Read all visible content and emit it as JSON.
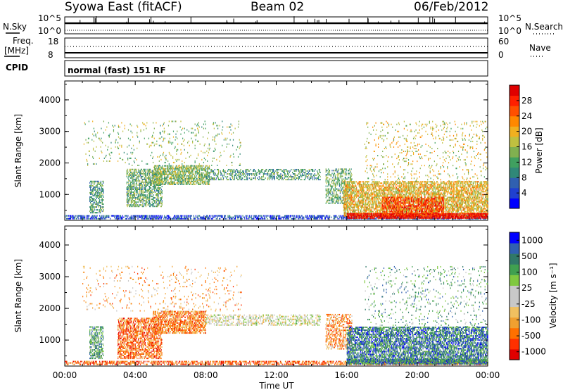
{
  "header": {
    "station": "Syowa East (fitACF)",
    "beam": "Beam 02",
    "date": "06/Feb/2012"
  },
  "status_panel": {
    "nsky_label": "N.Sky",
    "nsky_ticks": [
      "10^5",
      "10^0"
    ],
    "nsearch_label": "N.Search",
    "nsearch_ticks": [
      "10^5",
      "10^0"
    ],
    "freq_label": "Freq.",
    "freq_unit": "[MHz]",
    "freq_ticks": [
      "18",
      "8"
    ],
    "nave_label": "Nave",
    "nave_ticks": [
      "60",
      "0"
    ],
    "cpid_label": "CPID",
    "cpid_text": "normal (fast) 151 RF"
  },
  "chart_data": [
    {
      "type": "heatmap",
      "name": "power",
      "xlabel": "",
      "ylabel": "Slant Range [km]",
      "x_ticks": [
        "00:00",
        "04:00",
        "08:00",
        "12:00",
        "16:00",
        "20:00",
        "00:00"
      ],
      "y_ticks": [
        "1000",
        "2000",
        "3000",
        "4000"
      ],
      "xlim_hours": [
        0,
        24
      ],
      "ylim": [
        180,
        4600
      ],
      "colorbar": {
        "label": "Power [dB]",
        "ticks": [
          "4",
          "8",
          "12",
          "16",
          "20",
          "24",
          "28"
        ],
        "range": [
          0,
          30
        ],
        "colors": [
          "#0000ff",
          "#2040d0",
          "#3060b0",
          "#308878",
          "#40a060",
          "#80b050",
          "#c0c040",
          "#f0b020",
          "#ff8800",
          "#ff5000",
          "#ff2000",
          "#e00000"
        ]
      },
      "regions": [
        {
          "h0": 0.0,
          "h1": 24.0,
          "r0": 210,
          "r1": 330,
          "level": 0.15,
          "density": 0.55
        },
        {
          "h0": 1.4,
          "h1": 2.2,
          "r0": 400,
          "r1": 1400,
          "level": 0.35,
          "density": 0.5
        },
        {
          "h0": 3.5,
          "h1": 5.5,
          "r0": 600,
          "r1": 1800,
          "level": 0.4,
          "density": 0.5
        },
        {
          "h0": 5.0,
          "h1": 8.2,
          "r0": 1300,
          "r1": 1900,
          "level": 0.45,
          "density": 0.6
        },
        {
          "h0": 8.0,
          "h1": 14.5,
          "r0": 1450,
          "r1": 1800,
          "level": 0.35,
          "density": 0.35
        },
        {
          "h0": 14.8,
          "h1": 16.3,
          "r0": 700,
          "r1": 1800,
          "level": 0.4,
          "density": 0.4
        },
        {
          "h0": 15.8,
          "h1": 24.0,
          "r0": 300,
          "r1": 1400,
          "level": 0.6,
          "density": 0.6
        },
        {
          "h0": 16.0,
          "h1": 24.0,
          "r0": 230,
          "r1": 380,
          "level": 0.95,
          "density": 0.85
        },
        {
          "h0": 18.0,
          "h1": 21.5,
          "r0": 300,
          "r1": 900,
          "level": 0.85,
          "density": 0.5
        },
        {
          "h0": 17.0,
          "h1": 24.0,
          "r0": 1400,
          "r1": 3300,
          "level": 0.55,
          "density": 0.06
        },
        {
          "h0": 1.0,
          "h1": 10.0,
          "r0": 1900,
          "r1": 3300,
          "level": 0.45,
          "density": 0.05
        }
      ]
    },
    {
      "type": "heatmap",
      "name": "velocity",
      "xlabel": "Time UT",
      "ylabel": "Slant Range [km]",
      "x_ticks": [
        "00:00",
        "04:00",
        "08:00",
        "12:00",
        "16:00",
        "20:00",
        "00:00"
      ],
      "y_ticks": [
        "1000",
        "2000",
        "3000",
        "4000"
      ],
      "xlim_hours": [
        0,
        24
      ],
      "ylim": [
        180,
        4600
      ],
      "colorbar": {
        "label": "Velocity [m s⁻¹]",
        "ticks": [
          "1000",
          "500",
          "100",
          "25",
          "-25",
          "-100",
          "-500",
          "-1000"
        ],
        "range": [
          -1000,
          1000
        ],
        "colors": [
          "#e00000",
          "#ff3000",
          "#ff7000",
          "#f0a030",
          "#f0c060",
          "#c8c8c8",
          "#c8c8c8",
          "#80c840",
          "#40a050",
          "#307868",
          "#3060b0",
          "#0000ff"
        ]
      },
      "regions": [
        {
          "h0": 0.0,
          "h1": 24.0,
          "r0": 210,
          "r1": 330,
          "level": 0.2,
          "density": 0.5
        },
        {
          "h0": 1.4,
          "h1": 2.2,
          "r0": 400,
          "r1": 1400,
          "level": 0.7,
          "density": 0.5
        },
        {
          "h0": 3.0,
          "h1": 5.5,
          "r0": 400,
          "r1": 1700,
          "level": 0.22,
          "density": 0.55
        },
        {
          "h0": 5.0,
          "h1": 8.0,
          "r0": 1200,
          "r1": 1900,
          "level": 0.25,
          "density": 0.6
        },
        {
          "h0": 8.0,
          "h1": 14.5,
          "r0": 1450,
          "r1": 1800,
          "level": 0.5,
          "density": 0.35
        },
        {
          "h0": 14.8,
          "h1": 16.3,
          "r0": 700,
          "r1": 1800,
          "level": 0.28,
          "density": 0.4
        },
        {
          "h0": 16.0,
          "h1": 24.0,
          "r0": 300,
          "r1": 1400,
          "level": 0.8,
          "density": 0.6
        },
        {
          "h0": 16.0,
          "h1": 24.0,
          "r0": 230,
          "r1": 380,
          "level": 0.78,
          "density": 0.8
        },
        {
          "h0": 17.0,
          "h1": 24.0,
          "r0": 1400,
          "r1": 3300,
          "level": 0.7,
          "density": 0.06
        },
        {
          "h0": 1.0,
          "h1": 10.0,
          "r0": 1900,
          "r1": 3300,
          "level": 0.3,
          "density": 0.05
        }
      ]
    }
  ]
}
